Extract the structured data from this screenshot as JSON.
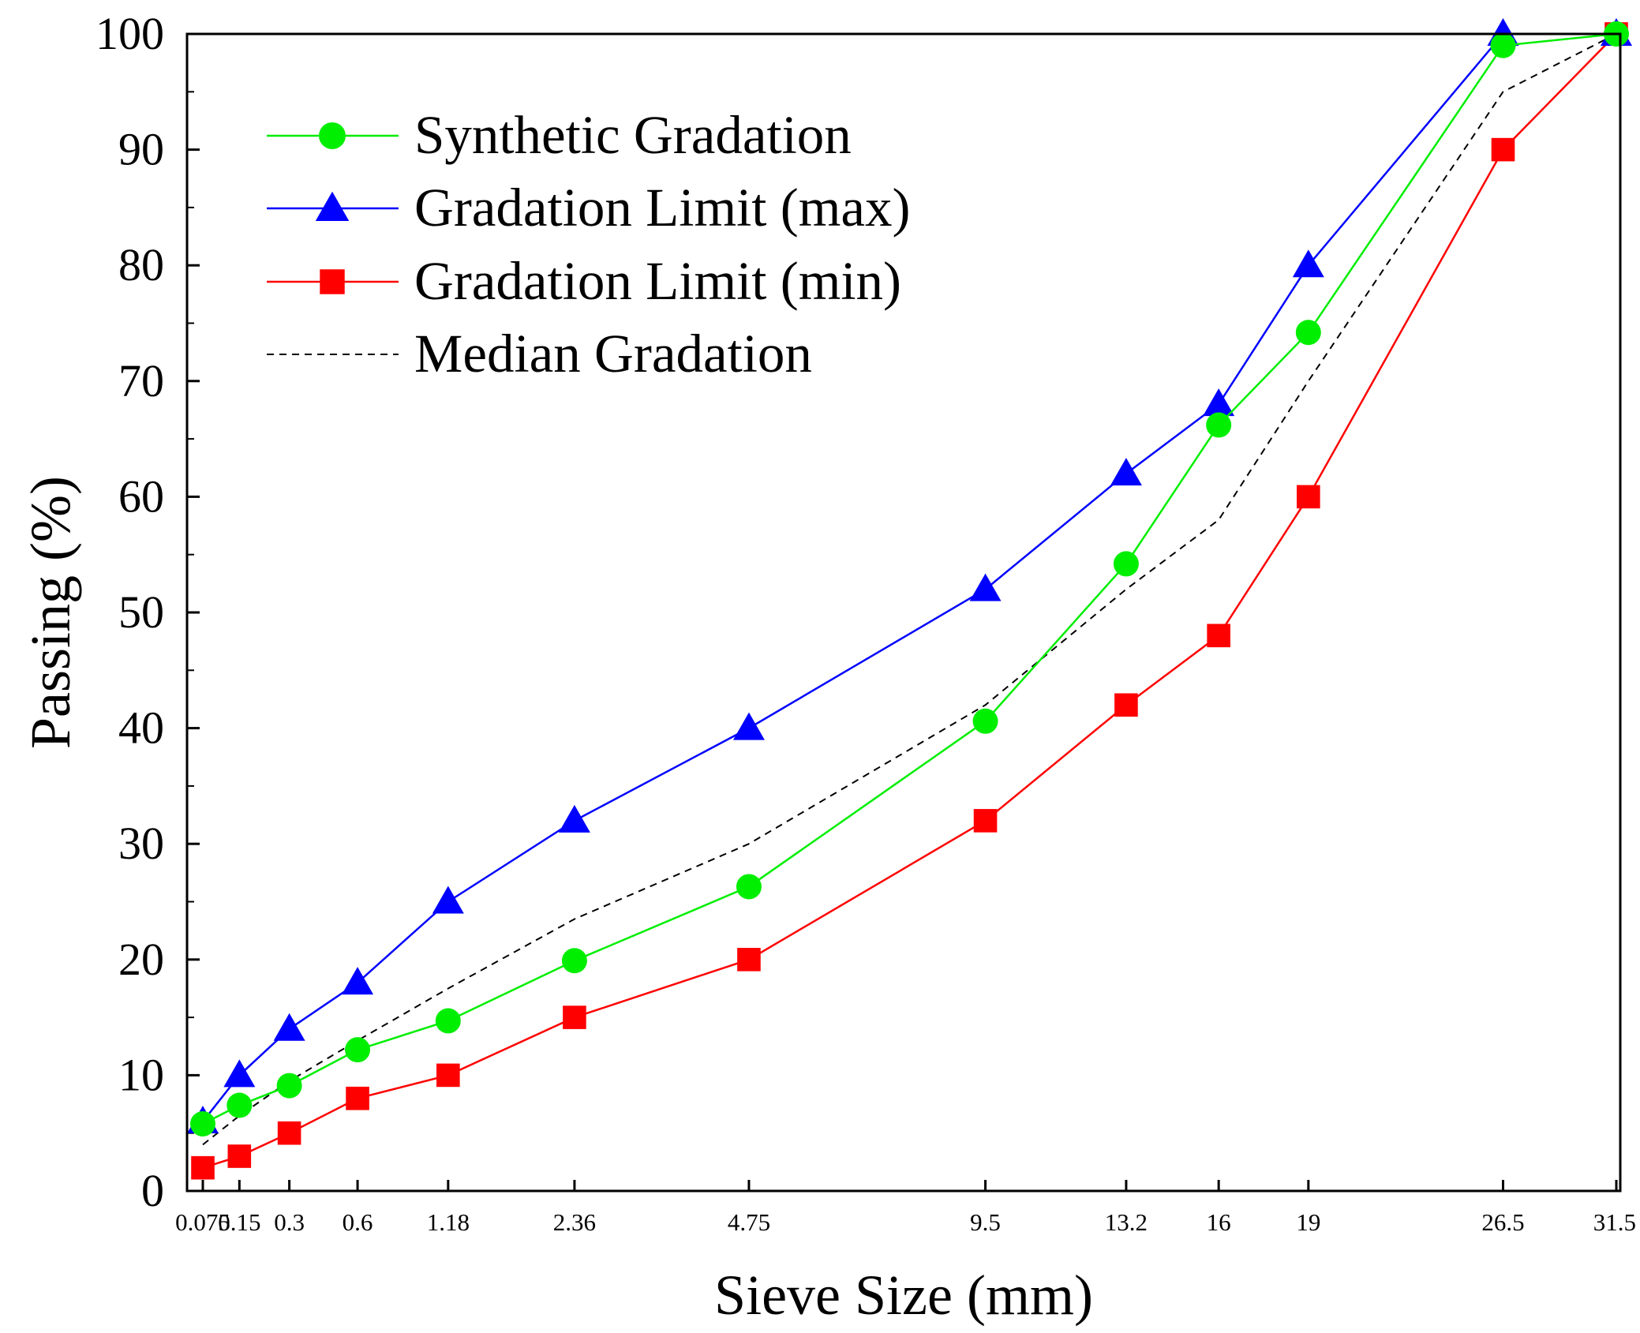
{
  "chart_data": {
    "type": "line",
    "xscale": "gradation power 0.45 (sieve sizes)",
    "categories": [
      "0.075",
      "0.15",
      "0.3",
      "0.6",
      "1.18",
      "2.36",
      "4.75",
      "9.5",
      "13.2",
      "16",
      "19",
      "26.5",
      "31.5"
    ],
    "x": [
      0.075,
      0.15,
      0.3,
      0.6,
      1.18,
      2.36,
      4.75,
      9.5,
      13.2,
      16,
      19,
      26.5,
      31.5
    ],
    "xlabel": "Sieve Size (mm)",
    "ylabel": "Passing (%)",
    "ylim": [
      0,
      100
    ],
    "yticks": [
      "0",
      "10",
      "20",
      "30",
      "40",
      "50",
      "60",
      "70",
      "80",
      "90",
      "100"
    ],
    "legend_position": "top-left",
    "series": [
      {
        "name": "Synthetic Gradation",
        "color": "#00ee00",
        "marker": "circle",
        "dash": "solid",
        "values": [
          5.8,
          7.4,
          9.1,
          12.2,
          14.7,
          19.9,
          26.3,
          40.6,
          54.2,
          66.2,
          74.2,
          99.0,
          100
        ]
      },
      {
        "name": "Gradation Limit (max)",
        "color": "#0000ff",
        "marker": "triangle",
        "dash": "solid",
        "values": [
          6,
          10,
          14,
          18,
          25,
          32,
          40,
          52,
          62,
          68,
          80,
          100,
          100
        ]
      },
      {
        "name": "Gradation Limit (min)",
        "color": "#ff0000",
        "marker": "square",
        "dash": "solid",
        "values": [
          2,
          3,
          5,
          8,
          10,
          15,
          20,
          32,
          42,
          48,
          60,
          90,
          100
        ]
      },
      {
        "name": "Median Gradation",
        "color": "#000000",
        "marker": "none",
        "dash": "dashed",
        "values": [
          4,
          6.5,
          9.5,
          13,
          17.5,
          23.5,
          30,
          42,
          52,
          58,
          70,
          95,
          100
        ]
      }
    ]
  }
}
